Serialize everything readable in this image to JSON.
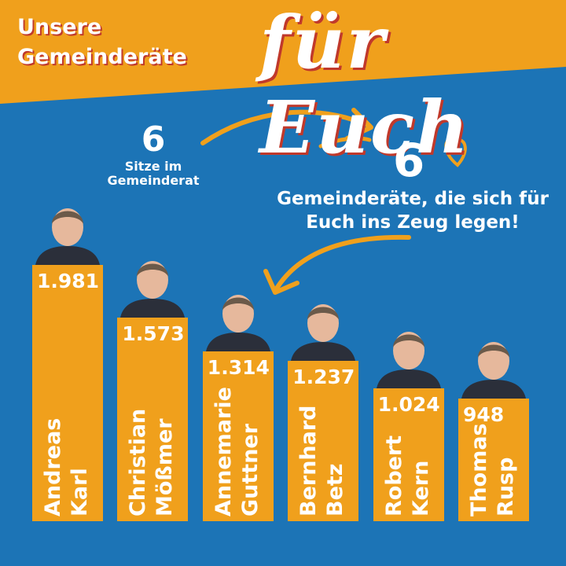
{
  "chart_data": {
    "type": "bar",
    "title": "Unsere Gemeinderäte",
    "subtitle": "für Euch",
    "seats_number": "6",
    "seats_text": "Sitze im Gemeinderat",
    "members_number": "6",
    "members_text": "Gemeinderäte, die sich für Euch ins Zeug legen!",
    "categories": [
      "Andreas Karl",
      "Christian Mößmer",
      "Annemarie Guttner",
      "Bernhard Betz",
      "Robert Kern",
      "Thomas Rusp"
    ],
    "values": [
      1981,
      1573,
      1314,
      1237,
      1024,
      948
    ],
    "value_labels": [
      "1.981",
      "1.573",
      "1.314",
      "1.237",
      "1.024",
      "948"
    ],
    "color": "#f0a01c"
  }
}
